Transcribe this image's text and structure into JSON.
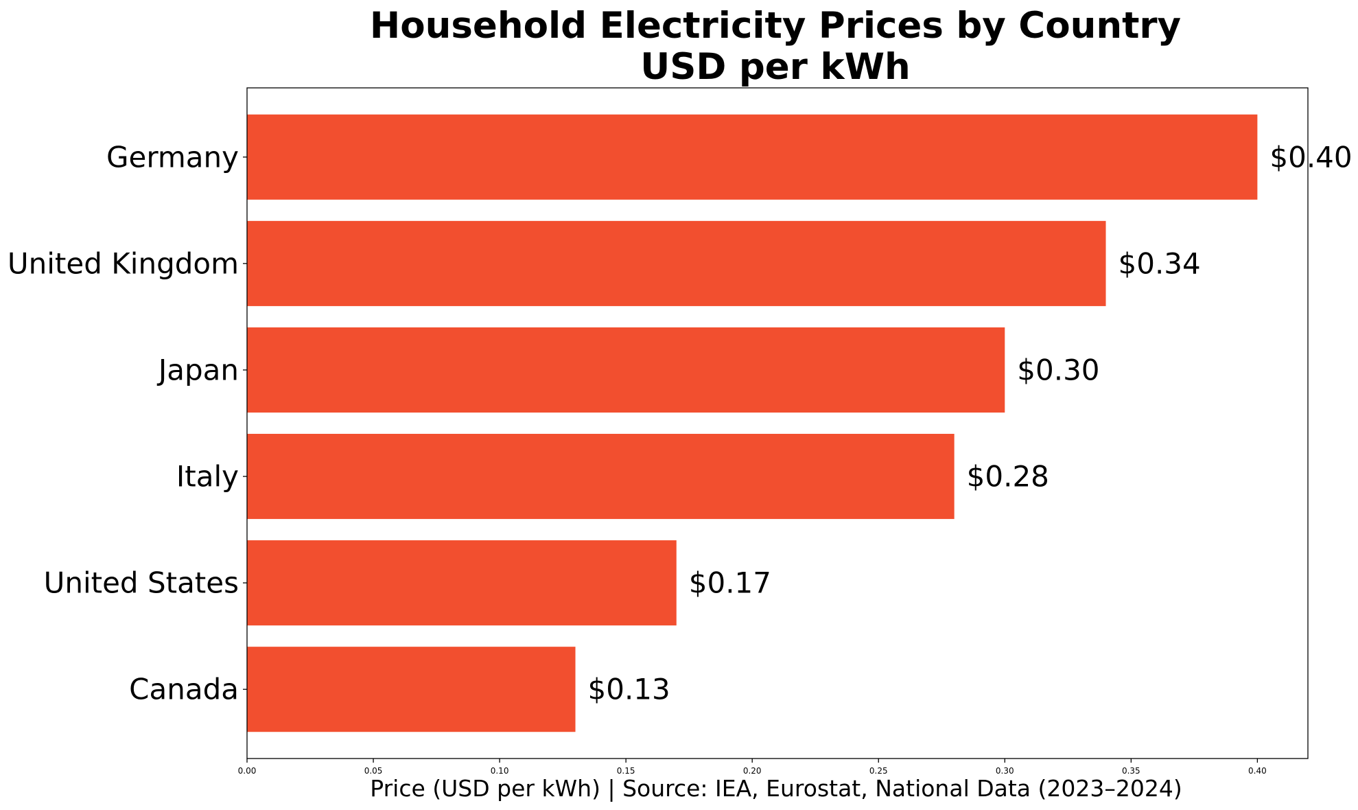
{
  "chart_data": {
    "type": "bar",
    "orientation": "horizontal",
    "title_line1": "Household Electricity Prices by Country",
    "title_line2": "USD per kWh",
    "xlabel": "Price (USD per kWh) | Source: IEA, Eurostat, National Data (2023–2024)",
    "ylabel": "",
    "categories": [
      "Germany",
      "United Kingdom",
      "Japan",
      "Italy",
      "United States",
      "Canada"
    ],
    "values": [
      0.4,
      0.34,
      0.3,
      0.28,
      0.17,
      0.13
    ],
    "data_labels": [
      "$0.40",
      "$0.34",
      "$0.30",
      "$0.28",
      "$0.17",
      "$0.13"
    ],
    "xlim": [
      0,
      0.42
    ],
    "xticks": [
      0.0,
      0.05,
      0.1,
      0.15,
      0.2,
      0.25,
      0.3,
      0.35,
      0.4
    ],
    "xtick_labels": [
      "0.00",
      "0.05",
      "0.10",
      "0.15",
      "0.20",
      "0.25",
      "0.30",
      "0.35",
      "0.40"
    ],
    "bar_color": "#f24f2f",
    "grid": false
  }
}
